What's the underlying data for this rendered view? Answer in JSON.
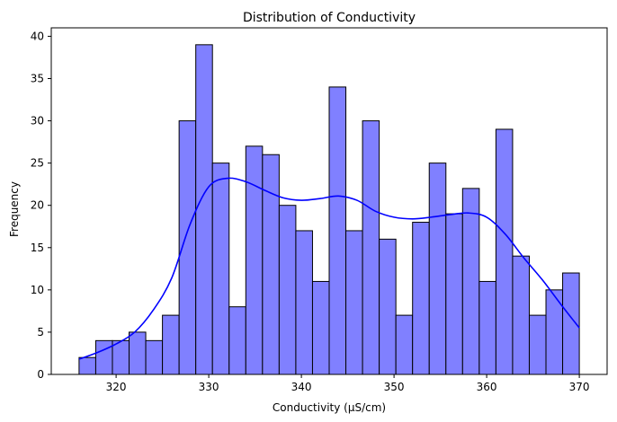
{
  "chart_data": {
    "type": "bar",
    "subtype": "histogram",
    "title": "Distribution of Conductivity",
    "xlabel": "Conductivity (µS/cm)",
    "ylabel": "Frequency",
    "xlim": [
      313,
      373
    ],
    "ylim": [
      0,
      41
    ],
    "xticks": [
      320,
      330,
      340,
      350,
      360,
      370
    ],
    "yticks": [
      0,
      5,
      10,
      15,
      20,
      25,
      30,
      35,
      40
    ],
    "bin_start": 316,
    "bin_width": 1.8,
    "counts": [
      2,
      4,
      4,
      5,
      4,
      7,
      30,
      39,
      25,
      8,
      27,
      26,
      20,
      17,
      11,
      34,
      17,
      30,
      16,
      7,
      18,
      25,
      19,
      22,
      11,
      29,
      14,
      7,
      10,
      12
    ],
    "kde": {
      "x": [
        316,
        318,
        320,
        322,
        324,
        326,
        328,
        330,
        332,
        334,
        336,
        338,
        340,
        342,
        344,
        346,
        348,
        350,
        352,
        354,
        356,
        358,
        360,
        362,
        364,
        366,
        368,
        370
      ],
      "y": [
        1.8,
        2.6,
        3.6,
        5.0,
        7.6,
        11.4,
        17.8,
        22.2,
        23.2,
        22.8,
        21.8,
        20.9,
        20.6,
        20.8,
        21.1,
        20.6,
        19.3,
        18.6,
        18.4,
        18.6,
        18.9,
        19.1,
        18.6,
        16.6,
        13.8,
        11.2,
        8.3,
        5.5
      ]
    },
    "grid": false,
    "colors": {
      "bar_fill": "#8080ff",
      "bar_edge": "#000000",
      "kde_line": "#0000ff"
    }
  }
}
